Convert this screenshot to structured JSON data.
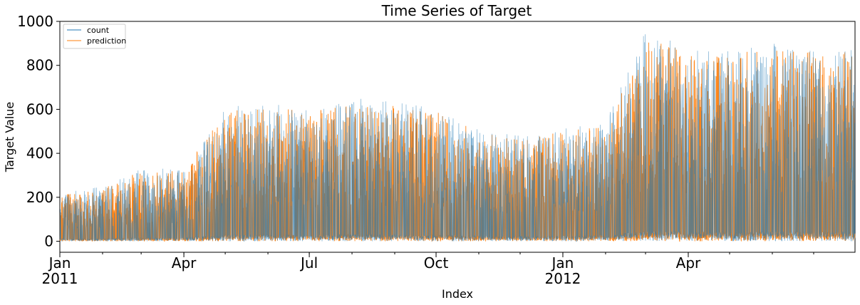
{
  "chart_data": {
    "type": "line",
    "title": "Time Series of Target",
    "xlabel": "Index",
    "ylabel": "Target Value",
    "x_range": [
      "2011-01-01",
      "2012-07-31"
    ],
    "ylim": [
      -50,
      1000
    ],
    "yticks": [
      0,
      200,
      400,
      600,
      800,
      1000
    ],
    "xticks": [
      {
        "date": "2011-01-01",
        "label": "Jan",
        "sublabel": "2011"
      },
      {
        "date": "2011-04-01",
        "label": "Apr",
        "sublabel": ""
      },
      {
        "date": "2011-07-01",
        "label": "Jul",
        "sublabel": ""
      },
      {
        "date": "2011-10-01",
        "label": "Oct",
        "sublabel": ""
      },
      {
        "date": "2012-01-01",
        "label": "Jan",
        "sublabel": "2012"
      },
      {
        "date": "2012-04-01",
        "label": "Apr",
        "sublabel": ""
      }
    ],
    "grid": false,
    "legend": "top-left",
    "series": [
      {
        "name": "count",
        "color": "#1f77b4",
        "monthly_peak_values": {
          "2011-01": 220,
          "2011-02": 250,
          "2011-03": 330,
          "2011-04": 330,
          "2011-05": 610,
          "2011-06": 630,
          "2011-07": 600,
          "2011-08": 650,
          "2011-09": 640,
          "2011-10": 600,
          "2011-11": 510,
          "2011-12": 480,
          "2012-01": 510,
          "2012-02": 550,
          "2012-03": 960,
          "2012-04": 880,
          "2012-05": 870,
          "2012-06": 900,
          "2012-07": 880
        }
      },
      {
        "name": "prediction",
        "color": "#ff7f0e",
        "monthly_peak_values": {
          "2011-01": 210,
          "2011-02": 240,
          "2011-03": 320,
          "2011-04": 320,
          "2011-05": 590,
          "2011-06": 610,
          "2011-07": 590,
          "2011-08": 630,
          "2011-09": 620,
          "2011-10": 590,
          "2011-11": 500,
          "2011-12": 470,
          "2012-01": 500,
          "2012-02": 530,
          "2012-03": 930,
          "2012-04": 860,
          "2012-05": 850,
          "2012-06": 880,
          "2012-07": 860
        }
      }
    ]
  }
}
